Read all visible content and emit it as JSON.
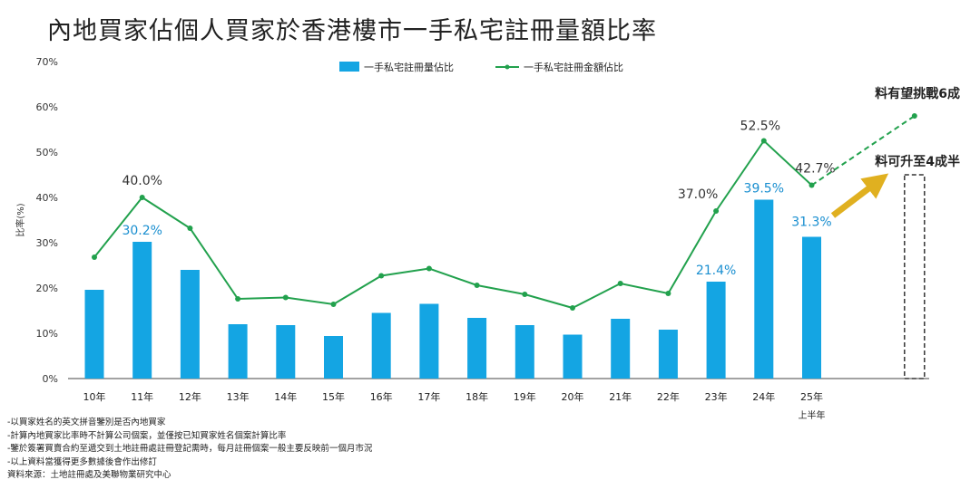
{
  "title": "內地買家佔個人買家於香港樓市一手私宅註冊量額比率",
  "chart_data": {
    "type": "bar",
    "categories": [
      "10年",
      "11年",
      "12年",
      "13年",
      "14年",
      "15年",
      "16年",
      "17年",
      "18年",
      "19年",
      "20年",
      "21年",
      "22年",
      "23年",
      "24年",
      "25年"
    ],
    "category_sublabels": {
      "25年": "上半年"
    },
    "ylabel": "比率(%)",
    "ylim": [
      0,
      70
    ],
    "yticks": [
      "0%",
      "10%",
      "20%",
      "30%",
      "40%",
      "50%",
      "60%",
      "70%"
    ],
    "grid": false,
    "legend_position": "top-center",
    "series": [
      {
        "name": "一手私宅註冊量佔比",
        "type": "bar",
        "color": "#14a5e3",
        "values": [
          19.6,
          30.2,
          24.0,
          12.0,
          11.8,
          9.4,
          14.5,
          16.5,
          13.4,
          11.8,
          9.7,
          13.2,
          10.8,
          21.4,
          39.5,
          31.3
        ],
        "data_labels": {
          "1": "30.2%",
          "13": "21.4%",
          "14": "39.5%",
          "15": "31.3%"
        }
      },
      {
        "name": "一手私宅註冊金額佔比",
        "type": "line",
        "color": "#22a14d",
        "values": [
          26.8,
          40.0,
          33.2,
          17.6,
          17.9,
          16.4,
          22.7,
          24.3,
          20.6,
          18.6,
          15.6,
          21.0,
          18.8,
          37.0,
          52.5,
          42.7
        ],
        "data_labels": {
          "1": "40.0%",
          "13": "37.0%",
          "14": "52.5%",
          "15": "42.7%"
        }
      }
    ],
    "forecast": {
      "line_target": 58,
      "line_label": "料有望挑戰6成",
      "bar_target": 45,
      "bar_label": "料可升至4成半"
    }
  },
  "notes": [
    "-以買家姓名的英文拼音鑒別是否內地買家",
    "-計算內地買家比率時不計算公司個案，並僅按已知買家姓名個案計算比率",
    "-鑒於簽署買賣合約至遞交到土地註冊處註冊登記需時，每月註冊個案一般主要反映前一個月市況",
    "-以上資料當獲得更多數據後會作出修訂",
    "資料來源：土地註冊處及美聯物業研究中心"
  ]
}
